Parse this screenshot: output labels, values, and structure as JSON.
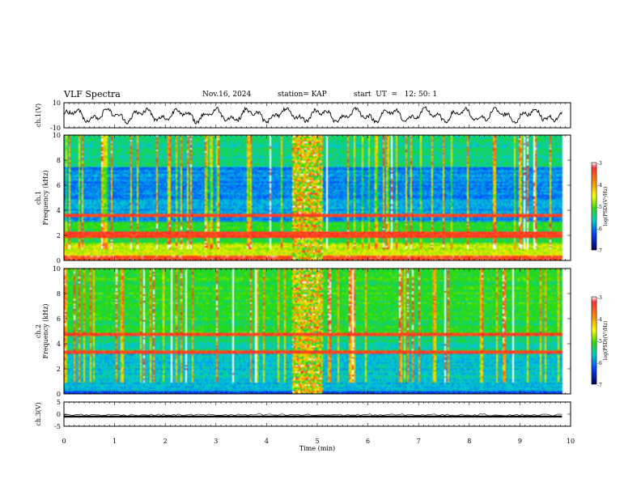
{
  "header": {
    "title": "VLF Spectra",
    "date": "Nov.16, 2024",
    "station": "station= KAP",
    "start_time": "start  UT  =   12: 50: 1"
  },
  "chart_data": [
    {
      "id": "ch1-waveform",
      "type": "line",
      "ylabel": "ch.1(V)",
      "ylim": [
        -10,
        10
      ],
      "yticks": [
        "10",
        "-10"
      ],
      "xlim": [
        0,
        10
      ],
      "note": "oscillating waveform around 0 V, amplitude roughly ±4 V"
    },
    {
      "id": "ch1-spectrogram",
      "type": "heatmap",
      "ylabel": "ch.1",
      "ylabel2": "Frequency (kHz)",
      "ylim": [
        0,
        10
      ],
      "yticks": [
        "0",
        "2",
        "4",
        "6",
        "8",
        "10"
      ],
      "xlim": [
        0,
        10
      ],
      "colorbar": {
        "label": "log(PSD)(V²/Hz)",
        "range": [
          -7,
          -3
        ],
        "ticks": [
          "-3",
          "-4",
          "-5",
          "-6",
          "-7"
        ]
      },
      "features": {
        "interference_band_min": [
          4.5,
          5.1
        ],
        "strong_lines_khz": [
          2.0,
          2.3,
          3.7
        ]
      }
    },
    {
      "id": "ch2-spectrogram",
      "type": "heatmap",
      "ylabel": "ch.2",
      "ylabel2": "Frequency (kHz)",
      "ylim": [
        0,
        10
      ],
      "yticks": [
        "0",
        "2",
        "4",
        "6",
        "8",
        "10"
      ],
      "xlim": [
        0,
        10
      ],
      "colorbar": {
        "label": "log(PSD)(V²/Hz)",
        "range": [
          -7,
          -3
        ],
        "ticks": [
          "-3",
          "-4",
          "-5",
          "-6",
          "-7"
        ]
      },
      "features": {
        "interference_band_min": [
          4.5,
          5.1
        ],
        "strong_lines_khz": [
          3.4,
          4.8
        ]
      }
    },
    {
      "id": "ch3-waveform",
      "type": "line",
      "ylabel": "ch.3(V)",
      "ylim": [
        -5,
        5
      ],
      "yticks": [
        "5",
        "0",
        "-5"
      ],
      "xlim": [
        0,
        10
      ],
      "note": "near-constant band around -1 V"
    }
  ],
  "xaxis": {
    "label": "Time  (min)",
    "ticks": [
      "0",
      "1",
      "2",
      "3",
      "4",
      "5",
      "6",
      "7",
      "8",
      "9",
      "10"
    ]
  }
}
